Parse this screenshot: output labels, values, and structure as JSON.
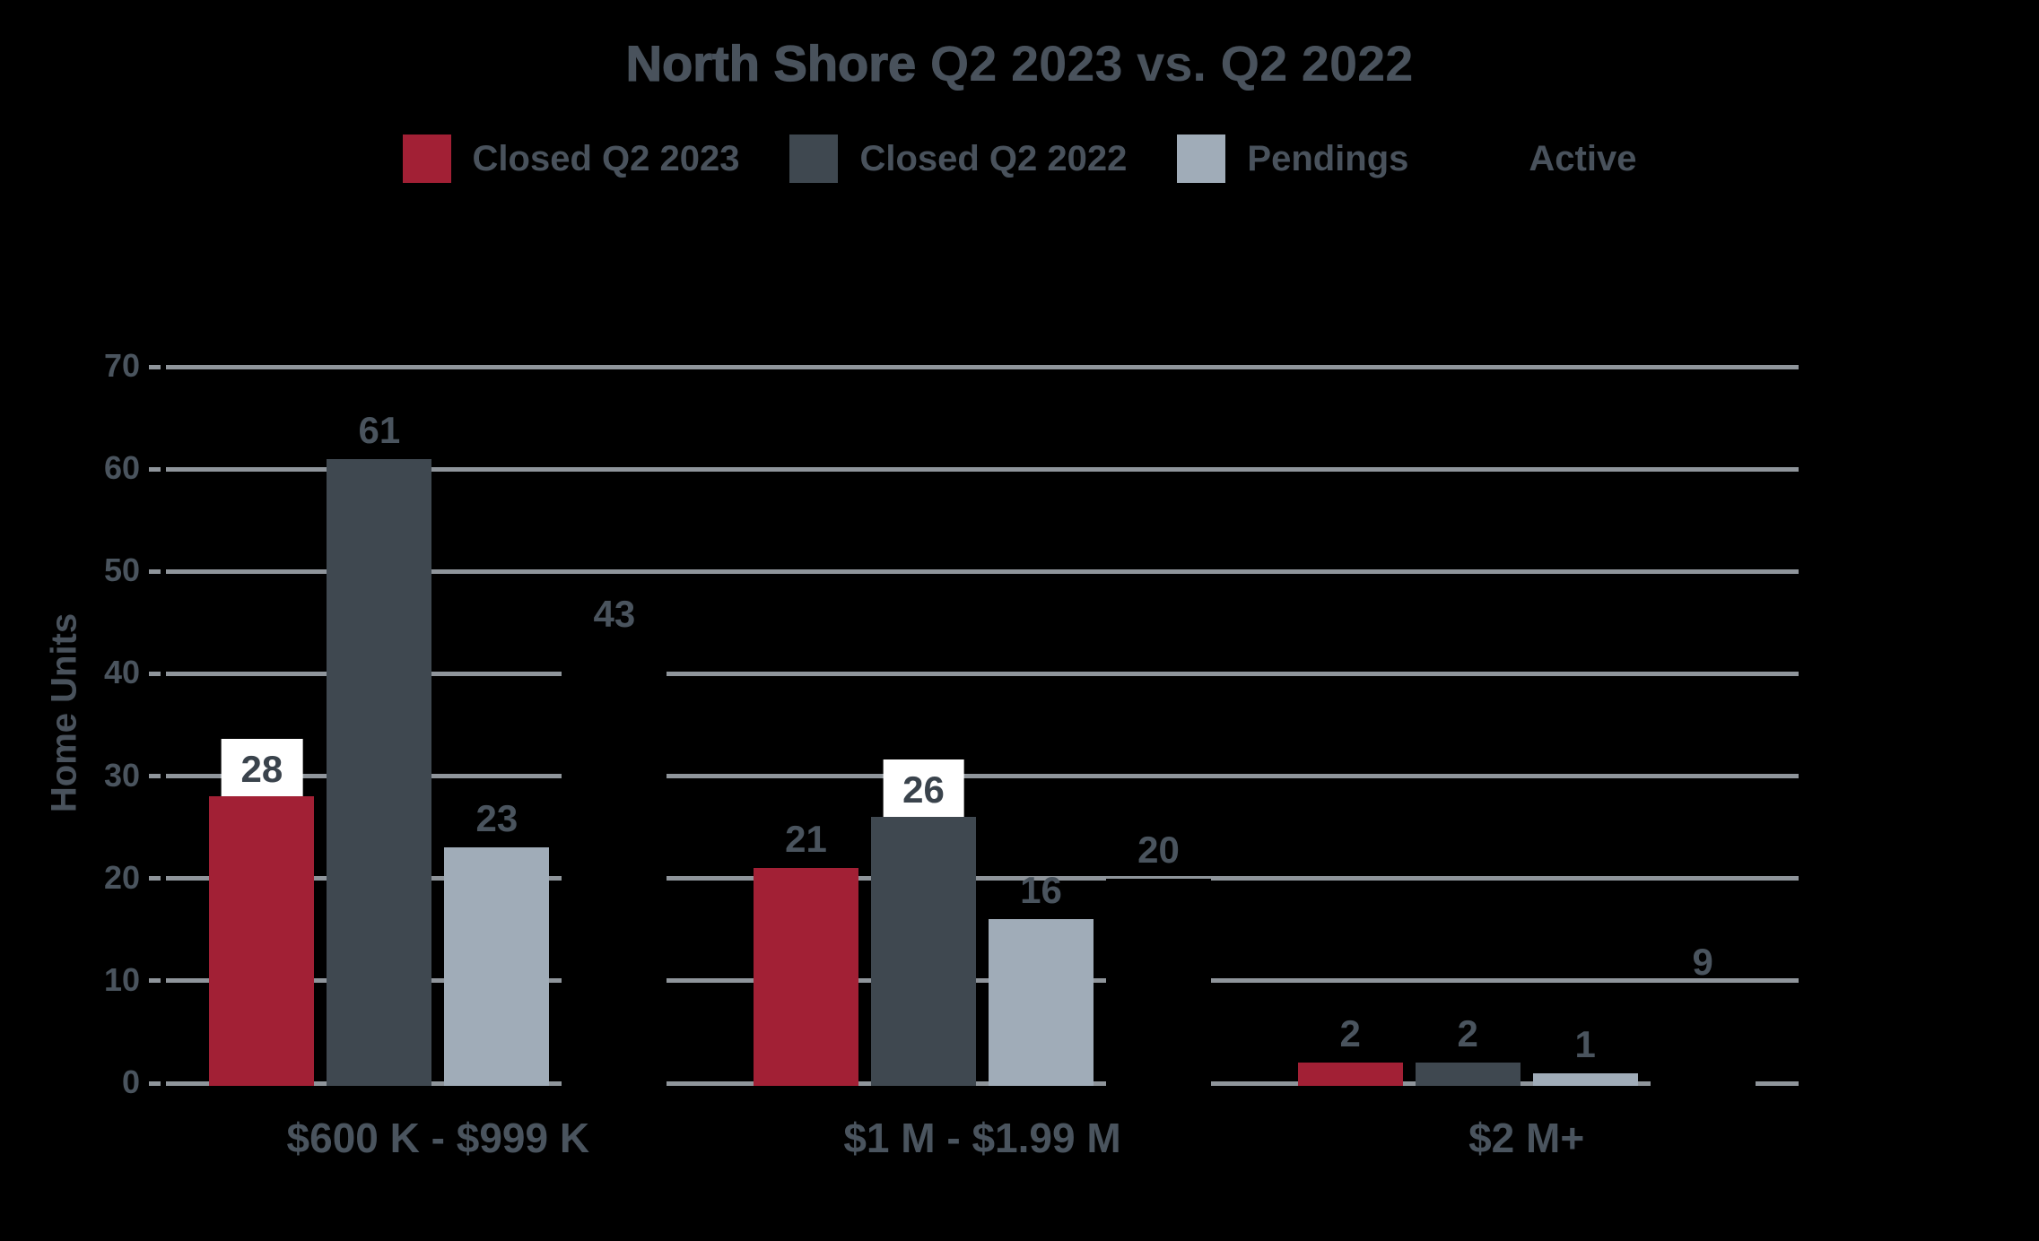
{
  "chart_data": {
    "type": "bar",
    "title": {
      "bold": "North Shore",
      "rest": " Q2 2023 vs. Q2 2022"
    },
    "ylabel": "Home Units",
    "ylim": [
      0,
      70
    ],
    "ytick_step": 10,
    "ytick_labels": [
      "0",
      "10",
      "20",
      "30",
      "40",
      "50",
      "60",
      "70"
    ],
    "grid": true,
    "legend_position": "top",
    "categories": [
      "$600 K - $999 K",
      "$1 M - $1.99 M",
      "$2 M+"
    ],
    "series": [
      {
        "name": "Closed Q2 2023",
        "color": "#A22035",
        "values": [
          28,
          21,
          2
        ],
        "boxed_labels": [
          true,
          false,
          false
        ]
      },
      {
        "name": "Closed Q2 2022",
        "color": "#3F4850",
        "values": [
          61,
          26,
          2
        ],
        "boxed_labels": [
          false,
          true,
          false
        ]
      },
      {
        "name": "Pendings",
        "color": "#A0ACB8",
        "values": [
          23,
          16,
          1
        ],
        "boxed_labels": [
          false,
          false,
          false
        ]
      },
      {
        "name": "Active",
        "color": "#000000",
        "values": [
          43,
          20,
          9
        ],
        "boxed_labels": [
          false,
          false,
          false
        ],
        "invisible_bars": true
      }
    ],
    "colors": {
      "background": "#000000",
      "gridline": "#8F959B",
      "axis_text": "#4A545E",
      "title_text": "#49525C",
      "label_box_background": "#FFFFFF"
    }
  }
}
